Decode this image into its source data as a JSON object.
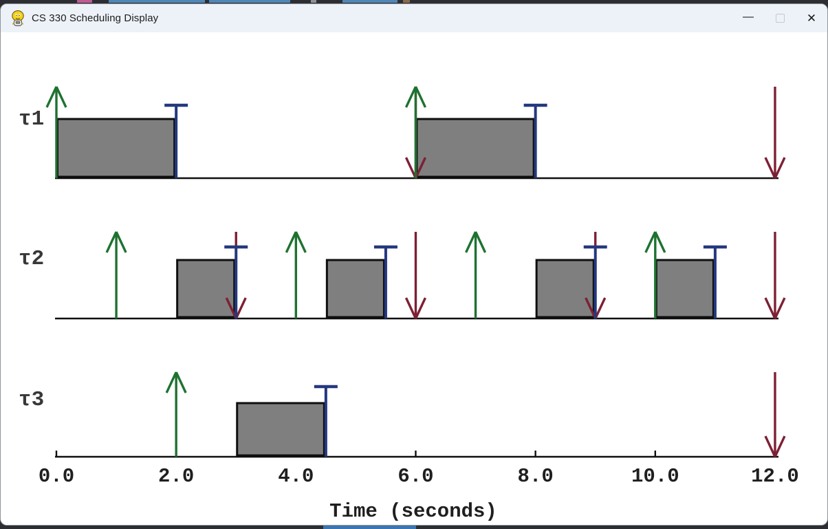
{
  "window": {
    "title": "CS 330 Scheduling Display"
  },
  "titlebar_icons": {
    "minimize_glyph": "—",
    "close_glyph": "✕"
  },
  "chart": {
    "tasks": [
      {
        "name": "τ1",
        "releases": [
          0,
          6
        ],
        "deadlines": [
          6,
          12
        ],
        "completions": [
          2,
          8
        ],
        "executions": [
          [
            0,
            2
          ],
          [
            6,
            8
          ]
        ]
      },
      {
        "name": "τ2",
        "releases": [
          1,
          4,
          7,
          10
        ],
        "deadlines": [
          3,
          6,
          9,
          12
        ],
        "completions": [
          3,
          5.5,
          9,
          11
        ],
        "executions": [
          [
            2,
            3
          ],
          [
            4.5,
            5.5
          ],
          [
            8,
            9
          ],
          [
            10,
            11
          ]
        ]
      },
      {
        "name": "τ3",
        "releases": [
          2
        ],
        "deadlines": [
          12
        ],
        "completions": [
          4.5
        ],
        "executions": [
          [
            3,
            4.5
          ]
        ]
      }
    ],
    "axis": {
      "t_min": 0,
      "t_max": 12,
      "ticks": [
        0,
        2,
        4,
        6,
        8,
        10,
        12
      ],
      "tick_labels": [
        "0.0",
        "2.0",
        "4.0",
        "6.0",
        "8.0",
        "10.0",
        "12.0"
      ],
      "title": "Time (seconds)"
    },
    "colors": {
      "release_arrow": "#1e7230",
      "deadline_arrow": "#7d2034",
      "completion_marker": "#24387f",
      "execution_fill": "#7f7f7f",
      "execution_border": "#0f0f0f",
      "baseline": "#0f0f0f",
      "task_label": "#383838",
      "axis_text": "#1f1f1f"
    }
  }
}
